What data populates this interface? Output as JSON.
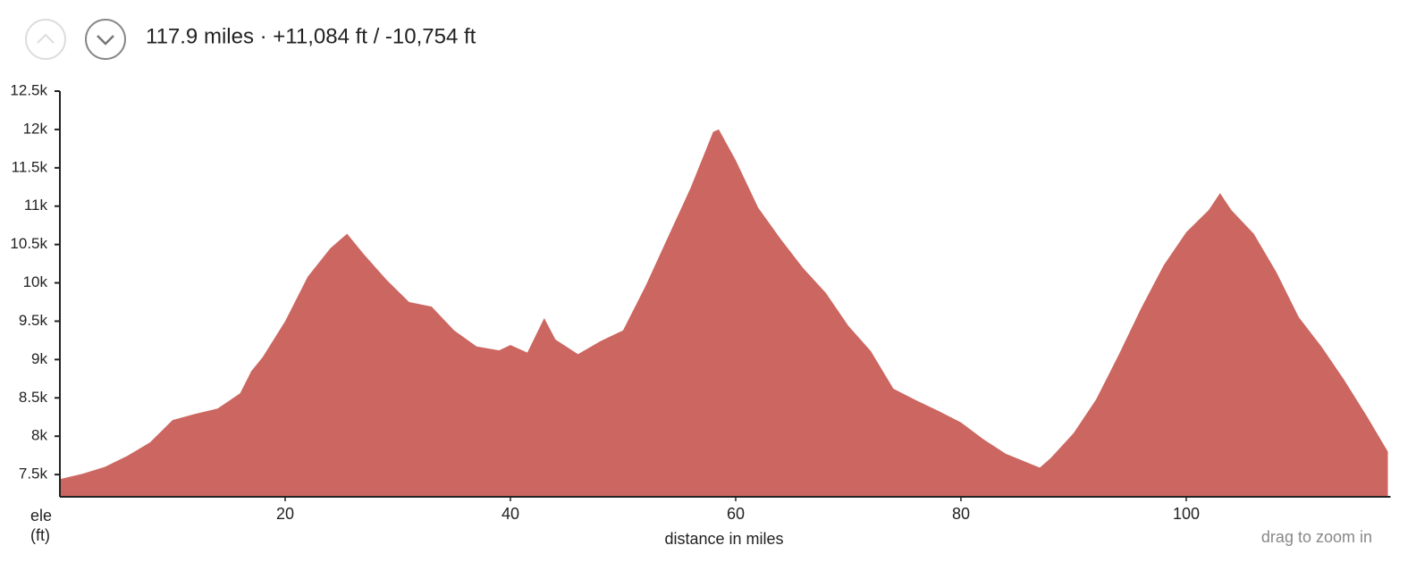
{
  "header": {
    "summary": "117.9 miles · +11,084 ft / -10,754 ft"
  },
  "chart_data": {
    "type": "area",
    "x_label": "distance in miles",
    "y_label": "ele (ft)",
    "hint": "drag to zoom in",
    "x": [
      0,
      2,
      4,
      6,
      8,
      10,
      12,
      14,
      16,
      17,
      18,
      20,
      22,
      24,
      25.5,
      27,
      29,
      31,
      33,
      35,
      37,
      39,
      40,
      41.5,
      43,
      44,
      46,
      48,
      50,
      52,
      54,
      56,
      58,
      58.5,
      60,
      62,
      64,
      66,
      68,
      70,
      72,
      74,
      76,
      78,
      80,
      82,
      84,
      86,
      87,
      88,
      90,
      92,
      94,
      96,
      98,
      100,
      102,
      103,
      104,
      106,
      108,
      110,
      112,
      114,
      116,
      117.9
    ],
    "series": [
      {
        "name": "elevation",
        "color": "#cc6660",
        "values": [
          7440,
          7510,
          7600,
          7745,
          7920,
          8210,
          8290,
          8360,
          8560,
          8850,
          9030,
          9500,
          10080,
          10450,
          10640,
          10370,
          10040,
          9750,
          9690,
          9380,
          9170,
          9120,
          9190,
          9090,
          9540,
          9260,
          9070,
          9240,
          9380,
          9960,
          10600,
          11240,
          11970,
          12000,
          11600,
          10980,
          10570,
          10190,
          9870,
          9440,
          9110,
          8620,
          8470,
          8330,
          8180,
          7960,
          7770,
          7650,
          7590,
          7720,
          8040,
          8480,
          9060,
          9670,
          10230,
          10660,
          10950,
          11170,
          10950,
          10640,
          10140,
          9550,
          9170,
          8740,
          8270,
          7800
        ]
      }
    ],
    "xlim": [
      0,
      117.9
    ],
    "ylim": [
      7210,
      12500
    ],
    "xticks": [
      20,
      40,
      60,
      80,
      100
    ],
    "yticks": [
      {
        "value": 7500,
        "label": "7.5k"
      },
      {
        "value": 8000,
        "label": "8k"
      },
      {
        "value": 8500,
        "label": "8.5k"
      },
      {
        "value": 9000,
        "label": "9k"
      },
      {
        "value": 9500,
        "label": "9.5k"
      },
      {
        "value": 10000,
        "label": "10k"
      },
      {
        "value": 10500,
        "label": "10.5k"
      },
      {
        "value": 11000,
        "label": "11k"
      },
      {
        "value": 11500,
        "label": "11.5k"
      },
      {
        "value": 12000,
        "label": "12k"
      },
      {
        "value": 12500,
        "label": "12.5k"
      }
    ]
  }
}
